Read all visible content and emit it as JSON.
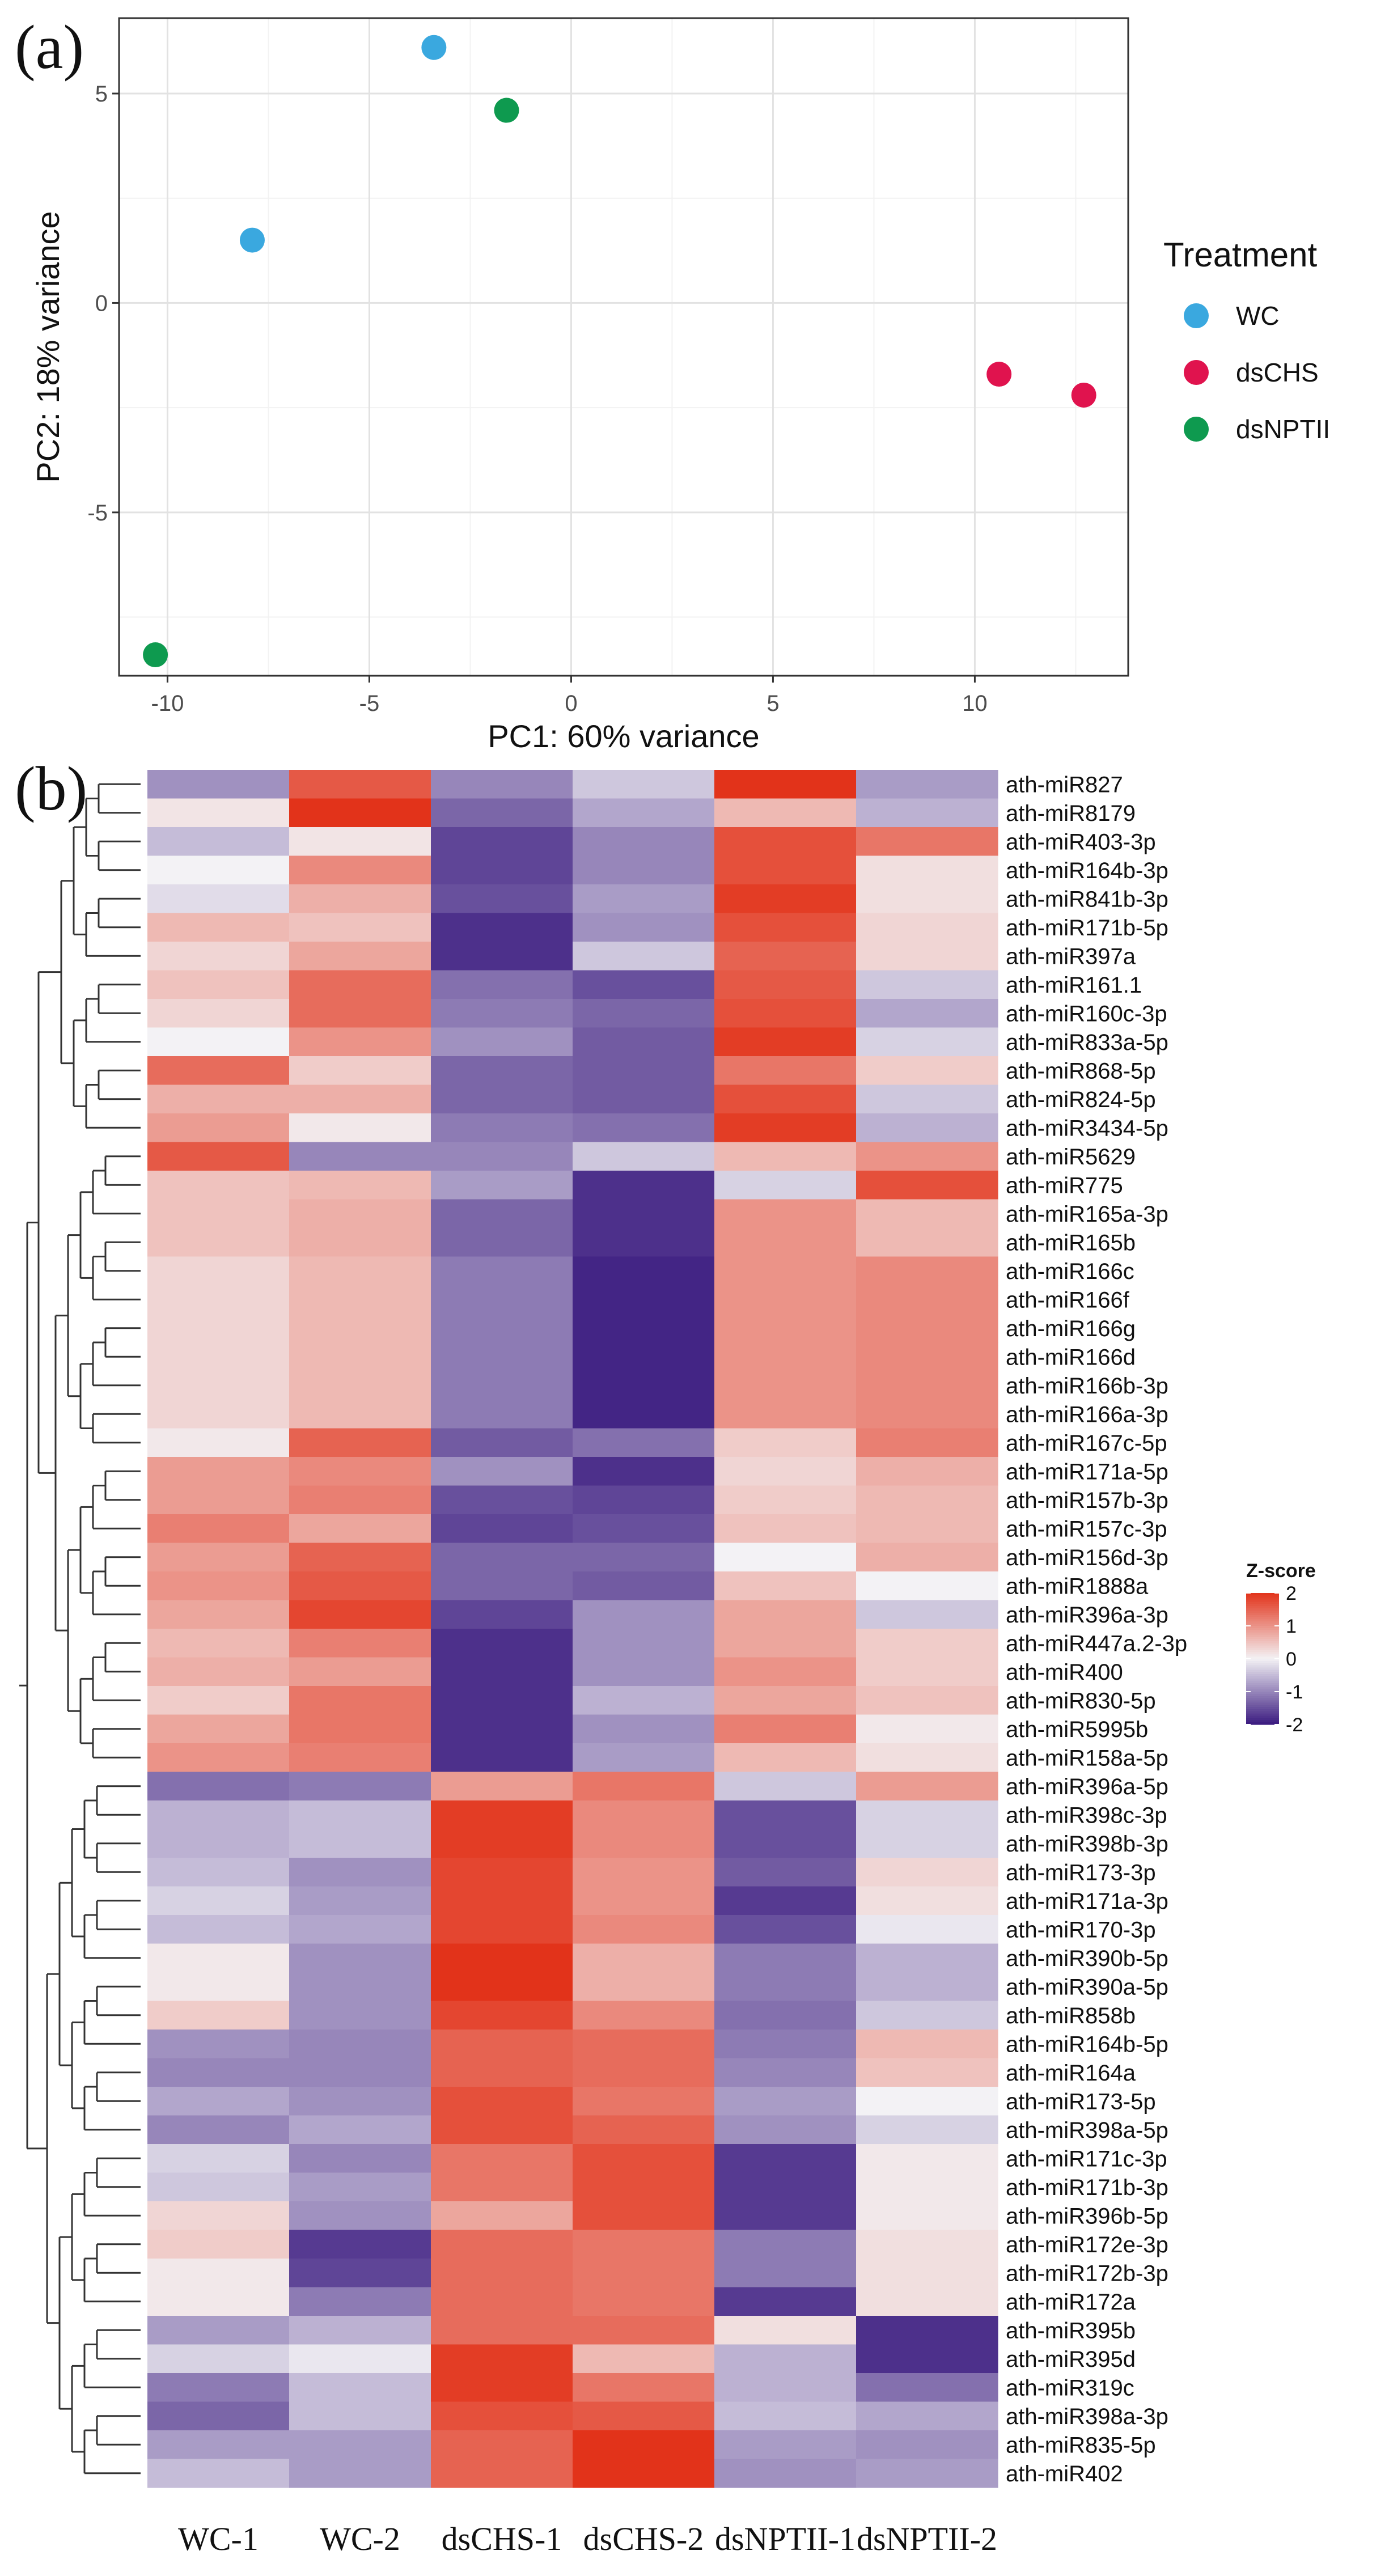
{
  "chart_data": [
    {
      "panel": "(a)",
      "type": "scatter",
      "xlabel": "PC1: 60% variance",
      "ylabel": "PC2: 18% variance",
      "xlim": [
        -11.2,
        13.8
      ],
      "ylim": [
        -8.9,
        6.8
      ],
      "xticks": [
        -10,
        -5,
        0,
        5,
        10
      ],
      "yticks": [
        -5,
        0,
        5
      ],
      "grid": true,
      "legend": {
        "title": "Treatment",
        "position": "right",
        "entries": [
          {
            "label": "WC",
            "color": "#3aa8df"
          },
          {
            "label": "dsCHS",
            "color": "#e0134e"
          },
          {
            "label": "dsNPTII",
            "color": "#0e9a4f"
          }
        ]
      },
      "points": [
        {
          "group": "WC",
          "x": -3.4,
          "y": 6.1
        },
        {
          "group": "WC",
          "x": -7.9,
          "y": 1.5
        },
        {
          "group": "dsNPTII",
          "x": -1.6,
          "y": 4.6
        },
        {
          "group": "dsNPTII",
          "x": -10.3,
          "y": -8.4
        },
        {
          "group": "dsCHS",
          "x": 10.6,
          "y": -1.7
        },
        {
          "group": "dsCHS",
          "x": 12.7,
          "y": -2.2
        }
      ]
    },
    {
      "panel": "(b)",
      "type": "heatmap",
      "columns": [
        "WC-1",
        "WC-2",
        "dsCHS-1",
        "dsCHS-2",
        "dsNPTII-1",
        "dsNPTII-2"
      ],
      "colorbar": {
        "title": "Z-score",
        "ticks": [
          2,
          1,
          0,
          -1,
          -2
        ],
        "low": "#3a1a7f",
        "mid": "#f3f2f5",
        "high": "#e2331a"
      },
      "rows": [
        {
          "label": "ath-miR827",
          "values": [
            -0.9,
            1.6,
            -1.0,
            -0.4,
            2.0,
            -0.8
          ]
        },
        {
          "label": "ath-miR8179",
          "values": [
            0.15,
            2.0,
            -1.3,
            -0.7,
            0.6,
            -0.6
          ]
        },
        {
          "label": "ath-miR403-3p",
          "values": [
            -0.5,
            0.15,
            -1.6,
            -1.0,
            1.7,
            1.3
          ]
        },
        {
          "label": "ath-miR164b-3p",
          "values": [
            0.0,
            1.1,
            -1.6,
            -1.0,
            1.7,
            0.2
          ]
        },
        {
          "label": "ath-miR841b-3p",
          "values": [
            -0.2,
            0.7,
            -1.5,
            -0.8,
            1.9,
            0.2
          ]
        },
        {
          "label": "ath-miR171b-5p",
          "values": [
            0.6,
            0.5,
            -1.8,
            -0.9,
            1.7,
            0.3
          ]
        },
        {
          "label": "ath-miR397a",
          "values": [
            0.3,
            0.8,
            -1.8,
            -0.4,
            1.5,
            0.3
          ]
        },
        {
          "label": "ath-miR161.1",
          "values": [
            0.5,
            1.4,
            -1.2,
            -1.5,
            1.6,
            -0.4
          ]
        },
        {
          "label": "ath-miR160c-3p",
          "values": [
            0.3,
            1.4,
            -1.1,
            -1.3,
            1.7,
            -0.7
          ]
        },
        {
          "label": "ath-miR833a-5p",
          "values": [
            0.0,
            1.0,
            -0.9,
            -1.4,
            1.9,
            -0.3
          ]
        },
        {
          "label": "ath-miR868-5p",
          "values": [
            1.4,
            0.4,
            -1.3,
            -1.4,
            1.3,
            0.4
          ]
        },
        {
          "label": "ath-miR824-5p",
          "values": [
            0.7,
            0.7,
            -1.3,
            -1.4,
            1.7,
            -0.4
          ]
        },
        {
          "label": "ath-miR3434-5p",
          "values": [
            0.9,
            0.1,
            -1.1,
            -1.2,
            1.9,
            -0.6
          ]
        },
        {
          "label": "ath-miR5629",
          "values": [
            1.6,
            -1.0,
            -1.0,
            -0.4,
            0.6,
            1.0
          ]
        },
        {
          "label": "ath-miR775",
          "values": [
            0.5,
            0.6,
            -0.8,
            -1.8,
            -0.3,
            1.7
          ]
        },
        {
          "label": "ath-miR165a-3p",
          "values": [
            0.5,
            0.7,
            -1.3,
            -1.8,
            1.0,
            0.6
          ]
        },
        {
          "label": "ath-miR165b",
          "values": [
            0.5,
            0.7,
            -1.3,
            -1.8,
            1.0,
            0.6
          ]
        },
        {
          "label": "ath-miR166c",
          "values": [
            0.3,
            0.6,
            -1.1,
            -1.9,
            1.0,
            1.1
          ]
        },
        {
          "label": "ath-miR166f",
          "values": [
            0.3,
            0.6,
            -1.1,
            -1.9,
            1.0,
            1.1
          ]
        },
        {
          "label": "ath-miR166g",
          "values": [
            0.3,
            0.6,
            -1.1,
            -1.9,
            1.0,
            1.1
          ]
        },
        {
          "label": "ath-miR166d",
          "values": [
            0.3,
            0.6,
            -1.1,
            -1.9,
            1.0,
            1.1
          ]
        },
        {
          "label": "ath-miR166b-3p",
          "values": [
            0.3,
            0.6,
            -1.1,
            -1.9,
            1.0,
            1.1
          ]
        },
        {
          "label": "ath-miR166a-3p",
          "values": [
            0.3,
            0.6,
            -1.1,
            -1.9,
            1.0,
            1.1
          ]
        },
        {
          "label": "ath-miR167c-5p",
          "values": [
            0.1,
            1.5,
            -1.4,
            -1.2,
            0.4,
            1.2
          ]
        },
        {
          "label": "ath-miR171a-5p",
          "values": [
            0.9,
            1.1,
            -0.9,
            -1.8,
            0.3,
            0.7
          ]
        },
        {
          "label": "ath-miR157b-3p",
          "values": [
            0.9,
            1.2,
            -1.5,
            -1.6,
            0.4,
            0.6
          ]
        },
        {
          "label": "ath-miR157c-3p",
          "values": [
            1.2,
            0.8,
            -1.6,
            -1.5,
            0.5,
            0.6
          ]
        },
        {
          "label": "ath-miR156d-3p",
          "values": [
            0.9,
            1.5,
            -1.3,
            -1.3,
            0.0,
            0.7
          ]
        },
        {
          "label": "ath-miR1888a",
          "values": [
            1.0,
            1.6,
            -1.3,
            -1.4,
            0.5,
            0.0
          ]
        },
        {
          "label": "ath-miR396a-3p",
          "values": [
            0.8,
            1.8,
            -1.6,
            -0.9,
            0.8,
            -0.4
          ]
        },
        {
          "label": "ath-miR447a.2-3p",
          "values": [
            0.6,
            1.2,
            -1.8,
            -0.9,
            0.8,
            0.4
          ]
        },
        {
          "label": "ath-miR400",
          "values": [
            0.7,
            0.9,
            -1.8,
            -0.9,
            1.0,
            0.4
          ]
        },
        {
          "label": "ath-miR830-5p",
          "values": [
            0.4,
            1.3,
            -1.8,
            -0.6,
            0.8,
            0.5
          ]
        },
        {
          "label": "ath-miR5995b",
          "values": [
            0.8,
            1.3,
            -1.8,
            -0.9,
            1.2,
            0.1
          ]
        },
        {
          "label": "ath-miR158a-5p",
          "values": [
            1.0,
            1.2,
            -1.8,
            -0.8,
            0.6,
            0.2
          ]
        },
        {
          "label": "ath-miR396a-5p",
          "values": [
            -1.2,
            -1.1,
            0.9,
            1.3,
            -0.4,
            0.9
          ]
        },
        {
          "label": "ath-miR398c-3p",
          "values": [
            -0.6,
            -0.5,
            1.9,
            1.1,
            -1.5,
            -0.3
          ]
        },
        {
          "label": "ath-miR398b-3p",
          "values": [
            -0.6,
            -0.5,
            1.9,
            1.1,
            -1.5,
            -0.3
          ]
        },
        {
          "label": "ath-miR173-3p",
          "values": [
            -0.5,
            -0.9,
            1.8,
            1.0,
            -1.4,
            0.3
          ]
        },
        {
          "label": "ath-miR171a-3p",
          "values": [
            -0.3,
            -0.8,
            1.8,
            1.0,
            -1.7,
            0.2
          ]
        },
        {
          "label": "ath-miR170-3p",
          "values": [
            -0.5,
            -0.7,
            1.8,
            1.1,
            -1.5,
            -0.1
          ]
        },
        {
          "label": "ath-miR390b-5p",
          "values": [
            0.1,
            -0.9,
            2.0,
            0.7,
            -1.1,
            -0.6
          ]
        },
        {
          "label": "ath-miR390a-5p",
          "values": [
            0.1,
            -0.9,
            2.0,
            0.7,
            -1.1,
            -0.6
          ]
        },
        {
          "label": "ath-miR858b",
          "values": [
            0.4,
            -0.9,
            1.8,
            1.1,
            -1.2,
            -0.4
          ]
        },
        {
          "label": "ath-miR164b-5p",
          "values": [
            -0.9,
            -1.0,
            1.5,
            1.4,
            -1.1,
            0.6
          ]
        },
        {
          "label": "ath-miR164a",
          "values": [
            -1.0,
            -1.0,
            1.5,
            1.4,
            -1.0,
            0.5
          ]
        },
        {
          "label": "ath-miR173-5p",
          "values": [
            -0.7,
            -0.9,
            1.7,
            1.3,
            -0.8,
            0.0
          ]
        },
        {
          "label": "ath-miR398a-5p",
          "values": [
            -1.0,
            -0.7,
            1.7,
            1.5,
            -0.9,
            -0.3
          ]
        },
        {
          "label": "ath-miR171c-3p",
          "values": [
            -0.3,
            -1.0,
            1.3,
            1.7,
            -1.7,
            0.1
          ]
        },
        {
          "label": "ath-miR171b-3p",
          "values": [
            -0.4,
            -0.8,
            1.3,
            1.7,
            -1.7,
            0.1
          ]
        },
        {
          "label": "ath-miR396b-5p",
          "values": [
            0.3,
            -0.9,
            0.8,
            1.7,
            -1.7,
            0.1
          ]
        },
        {
          "label": "ath-miR172e-3p",
          "values": [
            0.4,
            -1.7,
            1.4,
            1.3,
            -1.1,
            0.2
          ]
        },
        {
          "label": "ath-miR172b-3p",
          "values": [
            0.1,
            -1.6,
            1.4,
            1.3,
            -1.1,
            0.2
          ]
        },
        {
          "label": "ath-miR172a",
          "values": [
            0.1,
            -1.1,
            1.4,
            1.3,
            -1.7,
            0.2
          ]
        },
        {
          "label": "ath-miR395b",
          "values": [
            -0.8,
            -0.6,
            1.4,
            1.4,
            0.2,
            -1.8
          ]
        },
        {
          "label": "ath-miR395d",
          "values": [
            -0.3,
            -0.1,
            1.9,
            0.6,
            -0.6,
            -1.8
          ]
        },
        {
          "label": "ath-miR319c",
          "values": [
            -1.1,
            -0.5,
            1.9,
            1.3,
            -0.6,
            -1.2
          ]
        },
        {
          "label": "ath-miR398a-3p",
          "values": [
            -1.3,
            -0.5,
            1.7,
            1.6,
            -0.5,
            -0.7
          ]
        },
        {
          "label": "ath-miR835-5p",
          "values": [
            -0.8,
            -0.8,
            1.5,
            2.0,
            -0.8,
            -0.9
          ]
        },
        {
          "label": "ath-miR402",
          "values": [
            -0.5,
            -0.8,
            1.5,
            2.0,
            -0.9,
            -0.8
          ]
        }
      ]
    }
  ],
  "panel_labels": {
    "a": "(a)",
    "b": "(b)"
  }
}
